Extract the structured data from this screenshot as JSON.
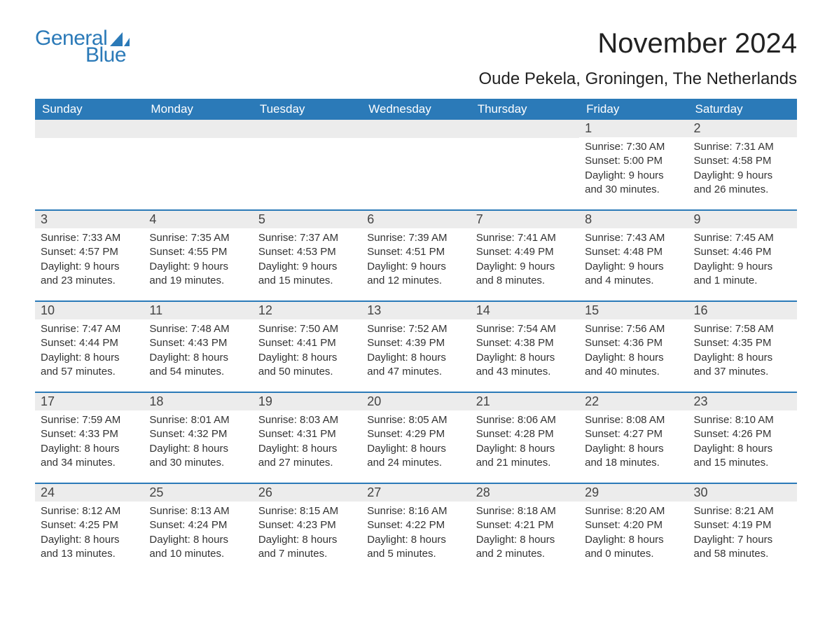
{
  "logo": {
    "text1": "General",
    "text2": "Blue",
    "icon_color": "#2b7ab8"
  },
  "title": "November 2024",
  "location": "Oude Pekela, Groningen, The Netherlands",
  "colors": {
    "header_bg": "#2b7ab8",
    "header_text": "#ffffff",
    "daynum_bg": "#ececec",
    "text": "#333333",
    "rule": "#2b7ab8",
    "page_bg": "#ffffff"
  },
  "typography": {
    "title_fontsize": 40,
    "location_fontsize": 24,
    "weekday_fontsize": 17,
    "daynum_fontsize": 18,
    "body_fontsize": 15,
    "font_family": "Arial"
  },
  "weekdays": [
    "Sunday",
    "Monday",
    "Tuesday",
    "Wednesday",
    "Thursday",
    "Friday",
    "Saturday"
  ],
  "weeks": [
    [
      null,
      null,
      null,
      null,
      null,
      {
        "n": "1",
        "sunrise": "7:30 AM",
        "sunset": "5:00 PM",
        "daylight": "9 hours and 30 minutes."
      },
      {
        "n": "2",
        "sunrise": "7:31 AM",
        "sunset": "4:58 PM",
        "daylight": "9 hours and 26 minutes."
      }
    ],
    [
      {
        "n": "3",
        "sunrise": "7:33 AM",
        "sunset": "4:57 PM",
        "daylight": "9 hours and 23 minutes."
      },
      {
        "n": "4",
        "sunrise": "7:35 AM",
        "sunset": "4:55 PM",
        "daylight": "9 hours and 19 minutes."
      },
      {
        "n": "5",
        "sunrise": "7:37 AM",
        "sunset": "4:53 PM",
        "daylight": "9 hours and 15 minutes."
      },
      {
        "n": "6",
        "sunrise": "7:39 AM",
        "sunset": "4:51 PM",
        "daylight": "9 hours and 12 minutes."
      },
      {
        "n": "7",
        "sunrise": "7:41 AM",
        "sunset": "4:49 PM",
        "daylight": "9 hours and 8 minutes."
      },
      {
        "n": "8",
        "sunrise": "7:43 AM",
        "sunset": "4:48 PM",
        "daylight": "9 hours and 4 minutes."
      },
      {
        "n": "9",
        "sunrise": "7:45 AM",
        "sunset": "4:46 PM",
        "daylight": "9 hours and 1 minute."
      }
    ],
    [
      {
        "n": "10",
        "sunrise": "7:47 AM",
        "sunset": "4:44 PM",
        "daylight": "8 hours and 57 minutes."
      },
      {
        "n": "11",
        "sunrise": "7:48 AM",
        "sunset": "4:43 PM",
        "daylight": "8 hours and 54 minutes."
      },
      {
        "n": "12",
        "sunrise": "7:50 AM",
        "sunset": "4:41 PM",
        "daylight": "8 hours and 50 minutes."
      },
      {
        "n": "13",
        "sunrise": "7:52 AM",
        "sunset": "4:39 PM",
        "daylight": "8 hours and 47 minutes."
      },
      {
        "n": "14",
        "sunrise": "7:54 AM",
        "sunset": "4:38 PM",
        "daylight": "8 hours and 43 minutes."
      },
      {
        "n": "15",
        "sunrise": "7:56 AM",
        "sunset": "4:36 PM",
        "daylight": "8 hours and 40 minutes."
      },
      {
        "n": "16",
        "sunrise": "7:58 AM",
        "sunset": "4:35 PM",
        "daylight": "8 hours and 37 minutes."
      }
    ],
    [
      {
        "n": "17",
        "sunrise": "7:59 AM",
        "sunset": "4:33 PM",
        "daylight": "8 hours and 34 minutes."
      },
      {
        "n": "18",
        "sunrise": "8:01 AM",
        "sunset": "4:32 PM",
        "daylight": "8 hours and 30 minutes."
      },
      {
        "n": "19",
        "sunrise": "8:03 AM",
        "sunset": "4:31 PM",
        "daylight": "8 hours and 27 minutes."
      },
      {
        "n": "20",
        "sunrise": "8:05 AM",
        "sunset": "4:29 PM",
        "daylight": "8 hours and 24 minutes."
      },
      {
        "n": "21",
        "sunrise": "8:06 AM",
        "sunset": "4:28 PM",
        "daylight": "8 hours and 21 minutes."
      },
      {
        "n": "22",
        "sunrise": "8:08 AM",
        "sunset": "4:27 PM",
        "daylight": "8 hours and 18 minutes."
      },
      {
        "n": "23",
        "sunrise": "8:10 AM",
        "sunset": "4:26 PM",
        "daylight": "8 hours and 15 minutes."
      }
    ],
    [
      {
        "n": "24",
        "sunrise": "8:12 AM",
        "sunset": "4:25 PM",
        "daylight": "8 hours and 13 minutes."
      },
      {
        "n": "25",
        "sunrise": "8:13 AM",
        "sunset": "4:24 PM",
        "daylight": "8 hours and 10 minutes."
      },
      {
        "n": "26",
        "sunrise": "8:15 AM",
        "sunset": "4:23 PM",
        "daylight": "8 hours and 7 minutes."
      },
      {
        "n": "27",
        "sunrise": "8:16 AM",
        "sunset": "4:22 PM",
        "daylight": "8 hours and 5 minutes."
      },
      {
        "n": "28",
        "sunrise": "8:18 AM",
        "sunset": "4:21 PM",
        "daylight": "8 hours and 2 minutes."
      },
      {
        "n": "29",
        "sunrise": "8:20 AM",
        "sunset": "4:20 PM",
        "daylight": "8 hours and 0 minutes."
      },
      {
        "n": "30",
        "sunrise": "8:21 AM",
        "sunset": "4:19 PM",
        "daylight": "7 hours and 58 minutes."
      }
    ]
  ],
  "labels": {
    "sunrise": "Sunrise: ",
    "sunset": "Sunset: ",
    "daylight": "Daylight: "
  }
}
